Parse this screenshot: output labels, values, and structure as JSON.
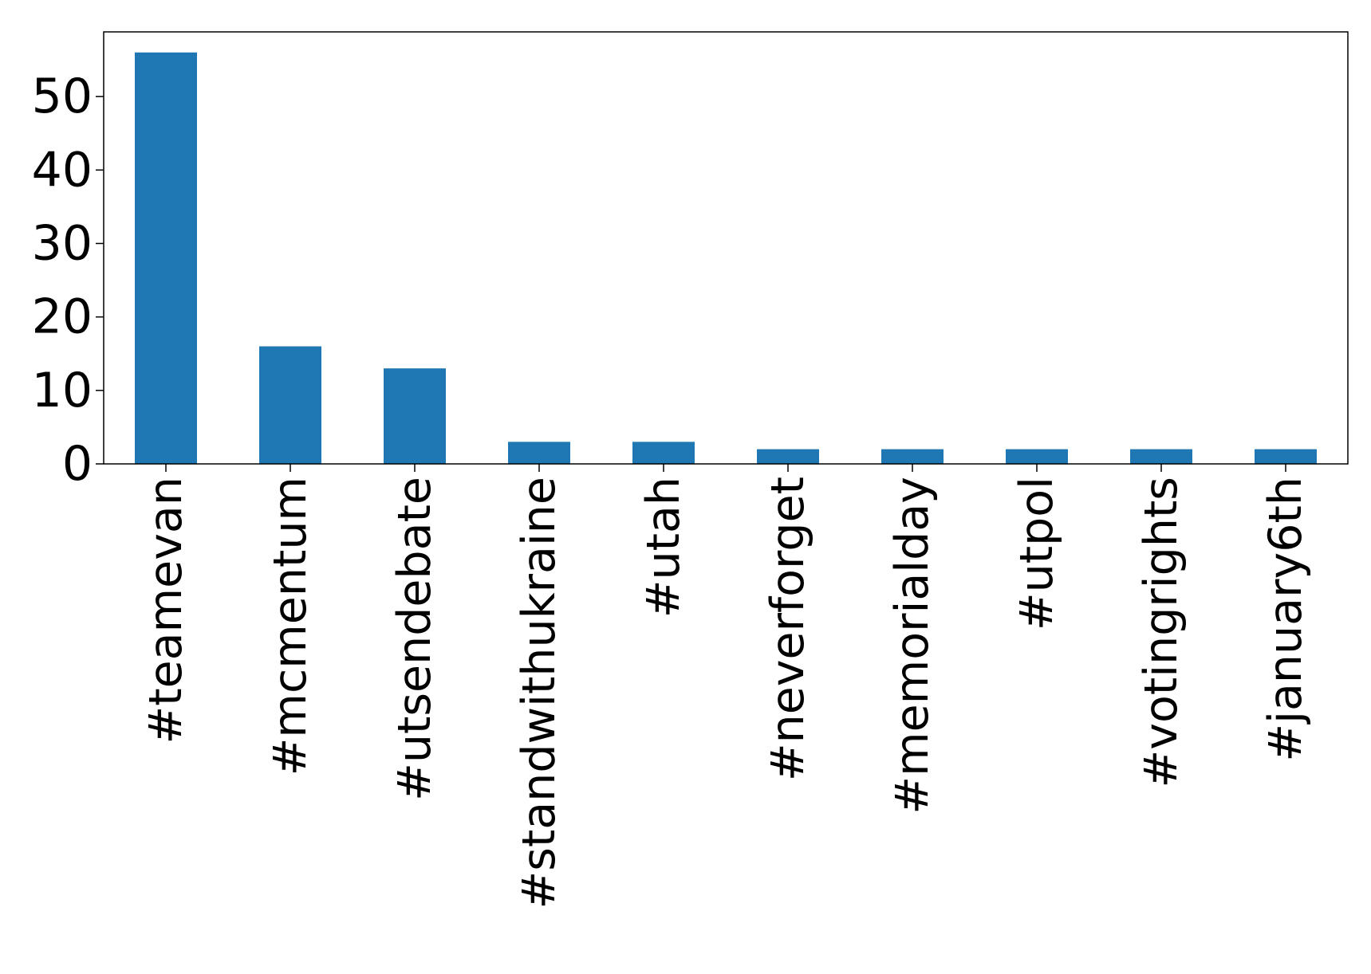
{
  "chart_data": {
    "type": "bar",
    "title": "",
    "xlabel": "",
    "ylabel": "",
    "categories": [
      "#teamevan",
      "#mcmentum",
      "#utsendebate",
      "#standwithukraine",
      "#utah",
      "#neverforget",
      "#memorialday",
      "#utpol",
      "#votingrights",
      "#january6th"
    ],
    "values": [
      56,
      16,
      13,
      3,
      3,
      2,
      2,
      2,
      2,
      2
    ],
    "ylim": [
      0,
      58.8
    ],
    "yticks": [
      0,
      10,
      20,
      30,
      40,
      50
    ],
    "ytick_labels": [
      "0",
      "10",
      "20",
      "30",
      "40",
      "50"
    ],
    "grid": false,
    "legend": "none",
    "bar_color": "#1f77b4",
    "axis_color": "#000000"
  }
}
